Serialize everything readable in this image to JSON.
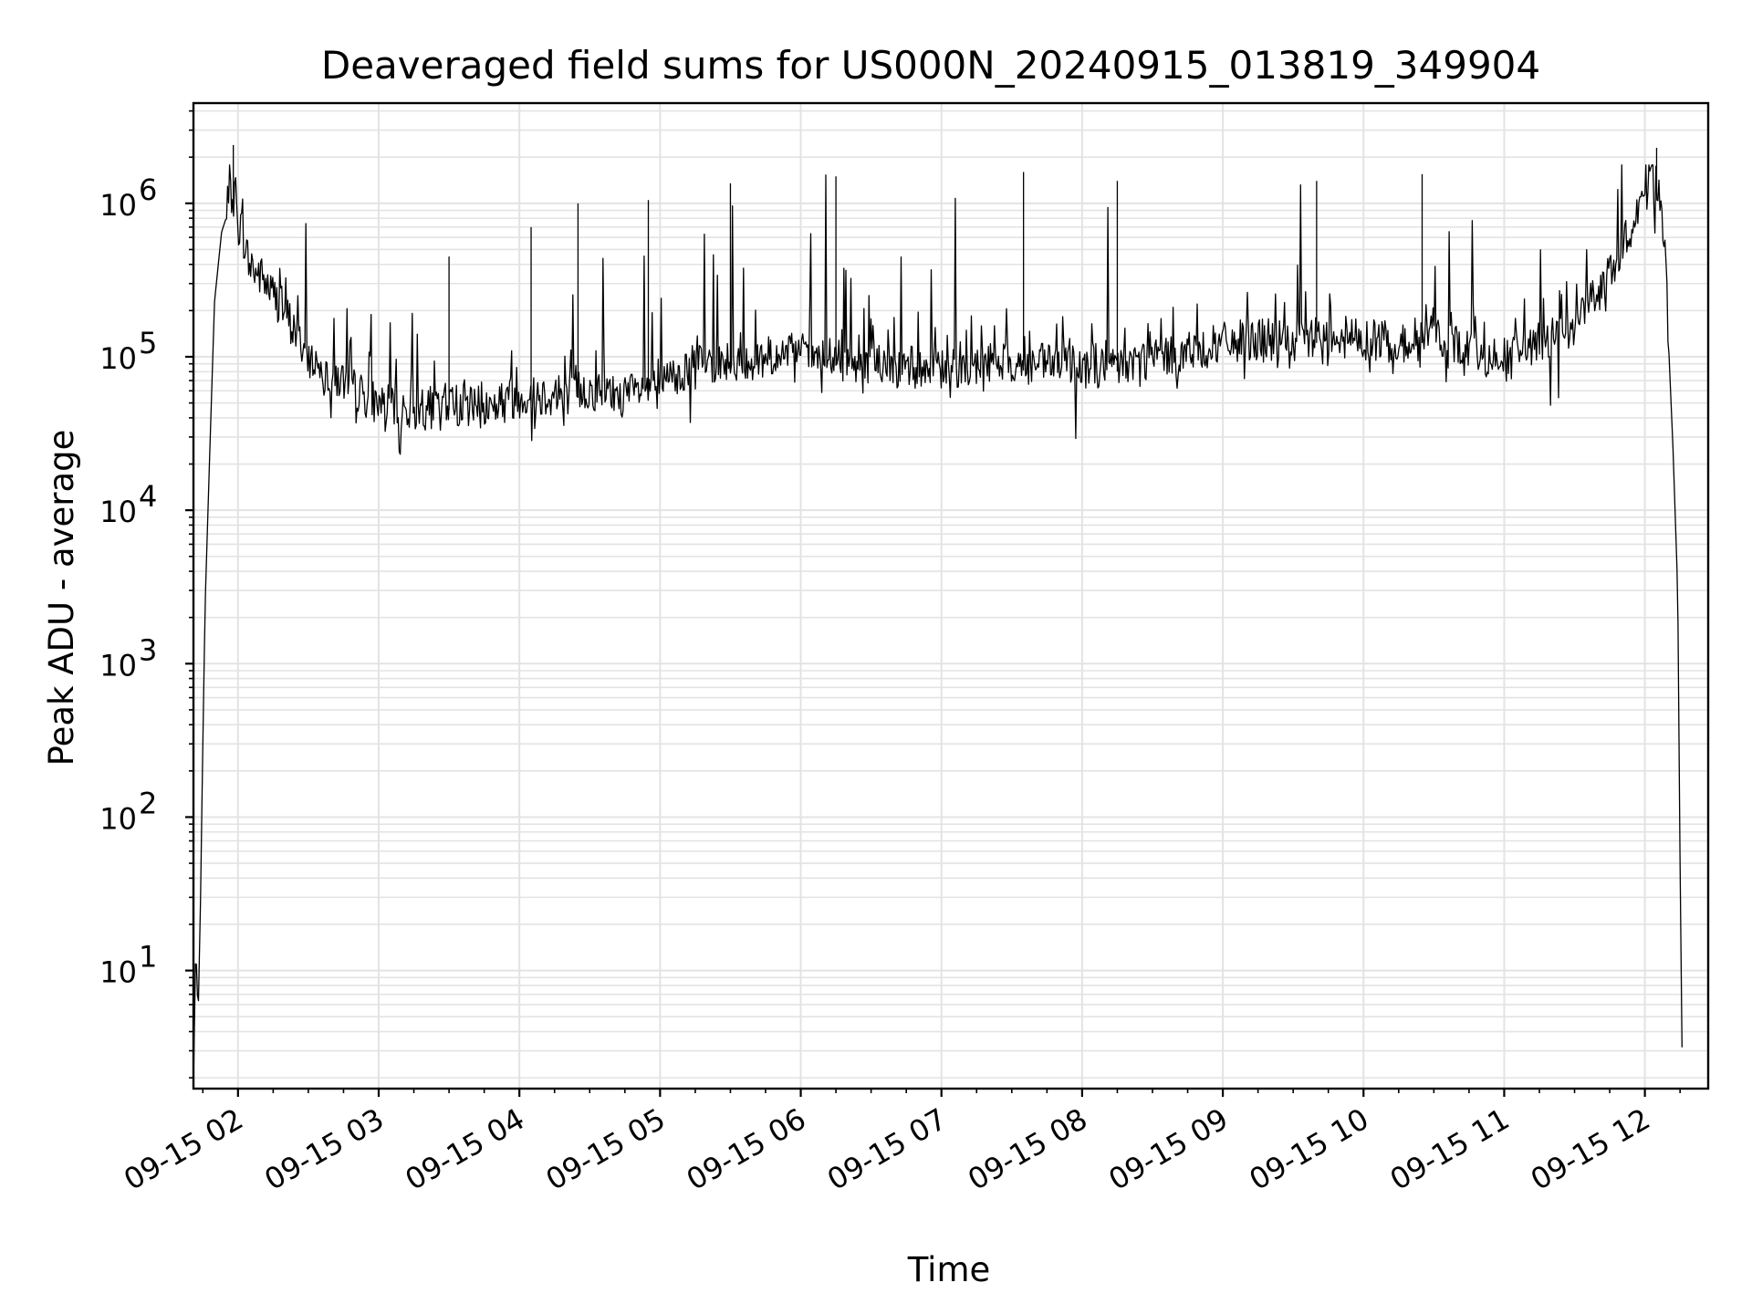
{
  "chart_data": {
    "type": "line",
    "title": "Deaveraged field sums for US000N_20240915_013819_349904",
    "xlabel": "Time",
    "ylabel": "Peak ADU - average",
    "yscale": "log",
    "ylim": [
      1.7,
      4500000
    ],
    "xlim": [
      "2024-09-15 01:41",
      "2024-09-15 12:27"
    ],
    "grid": true,
    "line_color": "#000000",
    "x_ticks": [
      {
        "t": "2024-09-15 02:00",
        "label": "09-15 02"
      },
      {
        "t": "2024-09-15 03:00",
        "label": "09-15 03"
      },
      {
        "t": "2024-09-15 04:00",
        "label": "09-15 04"
      },
      {
        "t": "2024-09-15 05:00",
        "label": "09-15 05"
      },
      {
        "t": "2024-09-15 06:00",
        "label": "09-15 06"
      },
      {
        "t": "2024-09-15 07:00",
        "label": "09-15 07"
      },
      {
        "t": "2024-09-15 08:00",
        "label": "09-15 08"
      },
      {
        "t": "2024-09-15 09:00",
        "label": "09-15 09"
      },
      {
        "t": "2024-09-15 10:00",
        "label": "09-15 10"
      },
      {
        "t": "2024-09-15 11:00",
        "label": "09-15 11"
      },
      {
        "t": "2024-09-15 12:00",
        "label": "09-15 12"
      }
    ],
    "y_ticks": [
      {
        "value": 10,
        "base": "10",
        "exp": "1"
      },
      {
        "value": 100,
        "base": "10",
        "exp": "2"
      },
      {
        "value": 1000,
        "base": "10",
        "exp": "3"
      },
      {
        "value": 10000,
        "base": "10",
        "exp": "4"
      },
      {
        "value": 100000,
        "base": "10",
        "exp": "5"
      },
      {
        "value": 1000000,
        "base": "10",
        "exp": "6"
      }
    ],
    "series": [
      {
        "x": [
          "2024-09-15 01:41",
          "2024-09-15 01:42",
          "2024-09-15 01:43",
          "2024-09-15 01:44",
          "2024-09-15 01:45",
          "2024-09-15 01:46",
          "2024-09-15 01:48",
          "2024-09-15 01:50",
          "2024-09-15 01:53",
          "2024-09-15 01:56",
          "2024-09-15 01:58",
          "2024-09-15 02:00",
          "2024-09-15 02:05",
          "2024-09-15 02:10",
          "2024-09-15 02:20",
          "2024-09-15 02:30",
          "2024-09-15 02:40",
          "2024-09-15 02:50",
          "2024-09-15 03:00",
          "2024-09-15 03:15",
          "2024-09-15 03:30",
          "2024-09-15 03:45",
          "2024-09-15 04:00",
          "2024-09-15 04:15",
          "2024-09-15 04:30",
          "2024-09-15 04:45",
          "2024-09-15 05:00",
          "2024-09-15 05:15",
          "2024-09-15 05:30",
          "2024-09-15 05:45",
          "2024-09-15 06:00",
          "2024-09-15 06:20",
          "2024-09-15 06:40",
          "2024-09-15 07:00",
          "2024-09-15 07:20",
          "2024-09-15 07:40",
          "2024-09-15 08:00",
          "2024-09-15 08:15",
          "2024-09-15 08:30",
          "2024-09-15 08:45",
          "2024-09-15 09:00",
          "2024-09-15 09:15",
          "2024-09-15 09:30",
          "2024-09-15 09:45",
          "2024-09-15 10:00",
          "2024-09-15 10:15",
          "2024-09-15 10:30",
          "2024-09-15 10:45",
          "2024-09-15 11:00",
          "2024-09-15 11:15",
          "2024-09-15 11:30",
          "2024-09-15 11:45",
          "2024-09-15 11:55",
          "2024-09-15 12:00",
          "2024-09-15 12:03",
          "2024-09-15 12:06",
          "2024-09-15 12:09",
          "2024-09-15 12:12",
          "2024-09-15 12:14",
          "2024-09-15 12:15",
          "2024-09-15 12:16"
        ],
        "y": [
          1.8,
          15,
          5,
          28,
          300,
          2500,
          25000,
          230000,
          650000,
          900000,
          1000000,
          800000,
          350000,
          300000,
          180000,
          90000,
          70000,
          55000,
          45000,
          40000,
          45000,
          42000,
          50000,
          52000,
          55000,
          50000,
          60000,
          80000,
          85000,
          90000,
          95000,
          85000,
          80000,
          75000,
          85000,
          80000,
          85000,
          80000,
          90000,
          95000,
          110000,
          120000,
          110000,
          130000,
          120000,
          110000,
          130000,
          100000,
          90000,
          110000,
          150000,
          300000,
          700000,
          1000000,
          1500000,
          1100000,
          300000,
          25000,
          3000,
          50,
          1.8
        ],
        "spike_tops": [
          {
            "x": "2024-09-15 01:58",
            "y": 2400000
          },
          {
            "x": "2024-09-15 03:30",
            "y": 450000
          },
          {
            "x": "2024-09-15 04:05",
            "y": 700000
          },
          {
            "x": "2024-09-15 04:25",
            "y": 1000000
          },
          {
            "x": "2024-09-15 04:55",
            "y": 1050000
          },
          {
            "x": "2024-09-15 05:30",
            "y": 1350000
          },
          {
            "x": "2024-09-15 06:15",
            "y": 1500000
          },
          {
            "x": "2024-09-15 07:35",
            "y": 1600000
          },
          {
            "x": "2024-09-15 08:15",
            "y": 1400000
          },
          {
            "x": "2024-09-15 09:40",
            "y": 1400000
          },
          {
            "x": "2024-09-15 10:25",
            "y": 1550000
          },
          {
            "x": "2024-09-15 12:05",
            "y": 2300000
          }
        ]
      }
    ]
  }
}
